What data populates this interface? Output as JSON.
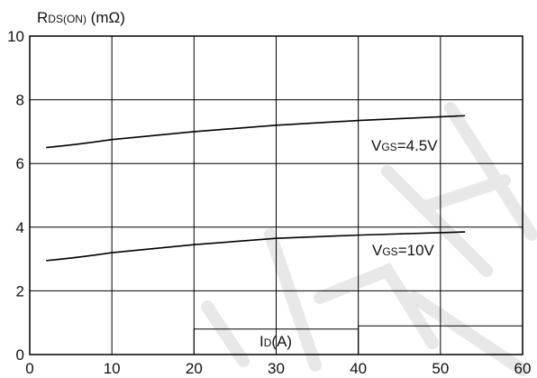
{
  "chart_data": {
    "type": "line",
    "ylabel_main": "R",
    "ylabel_sub": "DS(ON)",
    "ylabel_unit": " (mΩ)",
    "xlabel_main": "I",
    "xlabel_sub": "D",
    "xlabel_unit": "(A)",
    "xlim": [
      0,
      60
    ],
    "ylim": [
      0,
      10
    ],
    "xticks": [
      0,
      10,
      20,
      30,
      40,
      50,
      60
    ],
    "yticks": [
      0,
      2,
      4,
      6,
      8,
      10
    ],
    "grid": true,
    "series": [
      {
        "name_main": "V",
        "name_sub": "GS",
        "name_value": "=4.5V",
        "x": [
          2,
          10,
          20,
          30,
          40,
          53
        ],
        "y": [
          6.5,
          6.75,
          7.0,
          7.2,
          7.35,
          7.5
        ]
      },
      {
        "name_main": "V",
        "name_sub": "GS",
        "name_value": "=10V",
        "x": [
          2,
          10,
          20,
          30,
          40,
          53
        ],
        "y": [
          2.95,
          3.2,
          3.45,
          3.65,
          3.75,
          3.85
        ]
      }
    ],
    "colors": {
      "line": "#000000",
      "axis": "#000000",
      "grid": "#000000",
      "watermark": "#e6e6e6"
    }
  }
}
